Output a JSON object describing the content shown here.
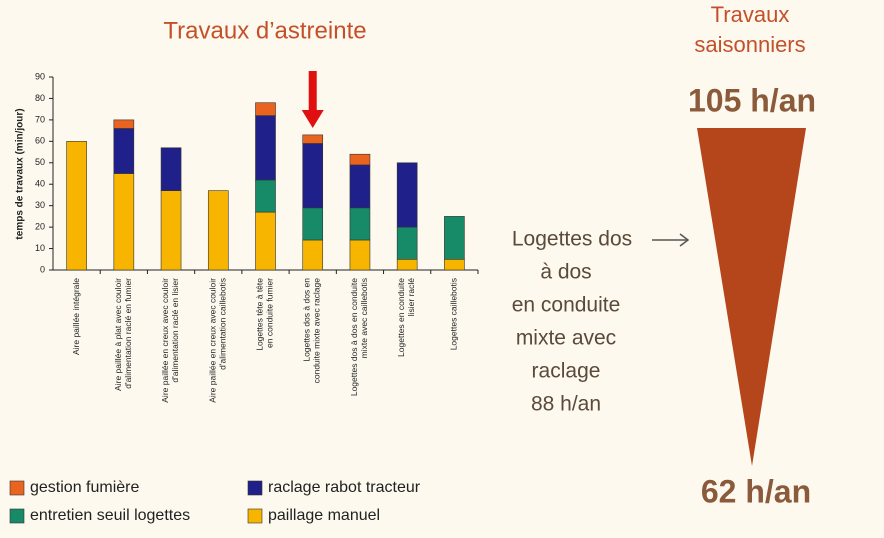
{
  "chart_data": {
    "type": "stacked_bar",
    "title": "Travaux d’astreinte",
    "ylabel": "temps de travaux (min/jour)",
    "categories": [
      "Aire paillée intégrale",
      "Aire paillée à plat avec couloir d'alimentation raclé en fumier",
      "Aire paillée en creux avec couloir d'alimentation raclé en lisier",
      "Aire paillée en creux avec couloir d'alimentation caillebotis",
      "Logettes tête à tête en conduite fumier",
      "Logettes dos à dos en conduite mixte avec raclage",
      "Logettes dos à dos en conduite mixte avec caillebotis",
      "Logettes en conduite lisier raclé",
      "Logettes caillebotis"
    ],
    "series": [
      {
        "name": "paillage manuel",
        "color": "#f7b500",
        "values": [
          60,
          45,
          37,
          37,
          27,
          14,
          14,
          5,
          5
        ]
      },
      {
        "name": "entretien seuil logettes",
        "color": "#178a68",
        "values": [
          0,
          0,
          0,
          0,
          15,
          15,
          15,
          15,
          20
        ]
      },
      {
        "name": "raclage rabot tracteur",
        "color": "#20208a",
        "values": [
          0,
          21,
          20,
          0,
          30,
          30,
          20,
          30,
          0
        ]
      },
      {
        "name": "gestion fumière",
        "color": "#ea6420",
        "values": [
          0,
          4,
          0,
          0,
          6,
          4,
          5,
          0,
          0
        ]
      }
    ],
    "ylim": [
      0,
      90
    ],
    "yticks": [
      0,
      10,
      20,
      30,
      40,
      50,
      60,
      70,
      80,
      90
    ],
    "highlight_index": 5
  },
  "seasonal": {
    "title": [
      "Travaux",
      "saisonniers"
    ],
    "top": "105 h/an",
    "bottom": "62 h/an",
    "note": [
      "Logettes dos",
      "à dos",
      "en conduite",
      "mixte avec",
      "raclage",
      "88 h/an"
    ]
  }
}
